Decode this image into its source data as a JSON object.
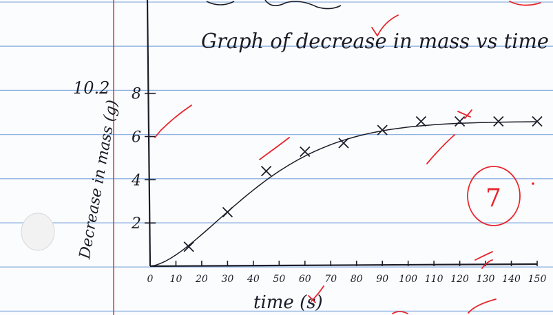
{
  "page": {
    "title": "Graph of decrease in mass vs time",
    "top_fragment": "",
    "mark": "7",
    "extra_label": "10.2"
  },
  "colors": {
    "paper": "#fbfcfe",
    "rule_line": "#8fb2e0",
    "margin_line": "#e0323c",
    "ink": "#1c1c28",
    "red_pen": "#e8242b",
    "punch_hole": "#f2f2f2"
  },
  "chart_data": {
    "type": "scatter",
    "title": "Graph of decrease in mass vs time",
    "xlabel": "time (s)",
    "ylabel": "Decrease in mass (g)",
    "xlim": [
      0,
      150
    ],
    "ylim": [
      0,
      8.5
    ],
    "x_ticks": [
      "0",
      "10",
      "20",
      "30",
      "40",
      "50",
      "60",
      "70",
      "80",
      "90",
      "100",
      "110",
      "120",
      "130",
      "140",
      "150"
    ],
    "y_ticks": [
      "2",
      "4",
      "6",
      "8"
    ],
    "series": [
      {
        "marker": "x",
        "x": [
          15,
          30,
          45,
          60,
          75,
          90,
          105,
          120,
          135,
          150
        ],
        "y": [
          0.9,
          2.5,
          4.4,
          5.3,
          5.7,
          6.3,
          6.7,
          6.7,
          6.7,
          6.7
        ]
      }
    ],
    "curve": "smooth best-fit line",
    "grid": false
  }
}
